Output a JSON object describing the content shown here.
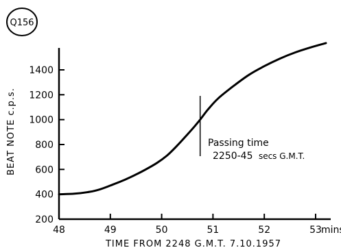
{
  "figure_id": "Q156",
  "chart_data": {
    "type": "line",
    "xlabel": "TIME FROM 2248 G.M.T. 7.10.1957",
    "ylabel": "BEAT NOTE c.p.s.",
    "x_unit": "mins",
    "xlim": [
      48,
      53.4
    ],
    "ylim": [
      200,
      1600
    ],
    "x_ticks": [
      48,
      49,
      50,
      51,
      52,
      53
    ],
    "x_tick_labels": [
      "48",
      "49",
      "50",
      "51",
      "52",
      "53"
    ],
    "y_ticks": [
      200,
      400,
      600,
      800,
      1000,
      1200,
      1400
    ],
    "y_tick_labels": [
      "200",
      "400",
      "600",
      "800",
      "1000",
      "1200",
      "1400"
    ],
    "grid": false,
    "series": [
      {
        "x": [
          48.0,
          48.3,
          48.6,
          48.8,
          49.0,
          49.3,
          49.6,
          49.9,
          50.1,
          50.3,
          50.5,
          50.65,
          50.75,
          50.9,
          51.1,
          51.4,
          51.7,
          52.0,
          52.3,
          52.6,
          52.9,
          53.2
        ],
        "y": [
          400,
          405,
          420,
          440,
          470,
          520,
          580,
          650,
          710,
          790,
          880,
          950,
          1000,
          1080,
          1170,
          1270,
          1360,
          1430,
          1490,
          1540,
          1580,
          1615
        ]
      }
    ],
    "annotation": {
      "marker_x": 50.75,
      "label_line1": "Passing time",
      "label_line2": "2250-45",
      "label_line2_suffix": "secs G.M.T."
    }
  }
}
